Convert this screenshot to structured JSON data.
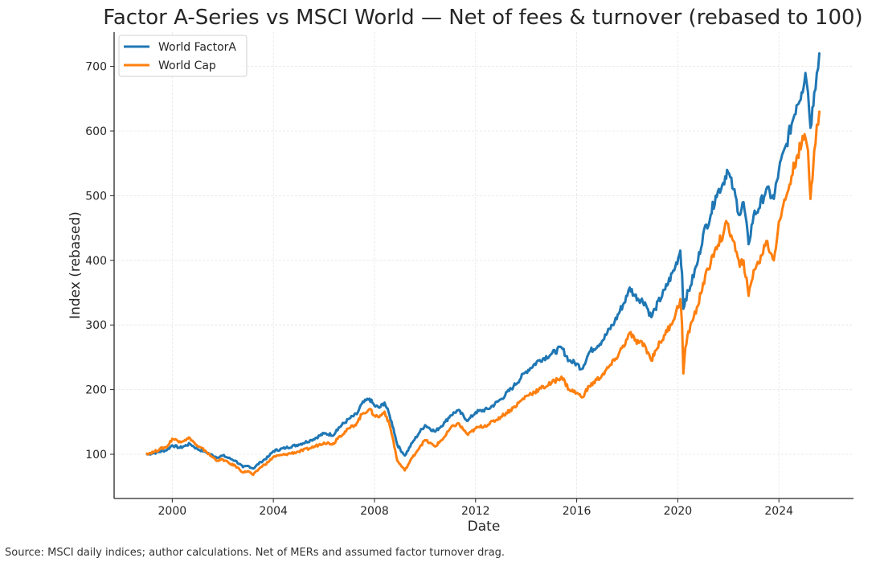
{
  "chart_data": {
    "type": "line",
    "title": "Factor A-Series vs MSCI World — Net of fees & turnover (rebased to 100)",
    "xlabel": "Date",
    "ylabel": "Index (rebased)",
    "xlim": [
      1997.7,
      2026.95
    ],
    "ylim": [
      31.6,
      753
    ],
    "xticks": [
      2000,
      2004,
      2008,
      2012,
      2016,
      2020,
      2024
    ],
    "xtick_labels": [
      "2000",
      "2004",
      "2008",
      "2012",
      "2016",
      "2020",
      "2024"
    ],
    "yticks": [
      100,
      200,
      300,
      400,
      500,
      600,
      700
    ],
    "ytick_labels": [
      "100",
      "200",
      "300",
      "400",
      "500",
      "600",
      "700"
    ],
    "grid": true,
    "legend_position": "top-left",
    "series": [
      {
        "name": "World FactorA",
        "color": "#1f77b4",
        "x": [
          1999.0,
          1999.3,
          1999.5,
          1999.8,
          2000.0,
          2000.3,
          2000.5,
          2000.7,
          2001.0,
          2001.3,
          2001.5,
          2001.8,
          2002.0,
          2002.3,
          2002.5,
          2002.8,
          2003.0,
          2003.2,
          2003.5,
          2003.8,
          2004.0,
          2004.5,
          2005.0,
          2005.5,
          2006.0,
          2006.4,
          2006.5,
          2007.0,
          2007.3,
          2007.5,
          2007.8,
          2008.0,
          2008.2,
          2008.4,
          2008.6,
          2008.75,
          2008.9,
          2009.1,
          2009.2,
          2009.5,
          2009.8,
          2010.0,
          2010.4,
          2010.8,
          2011.0,
          2011.3,
          2011.7,
          2012.0,
          2012.5,
          2013.0,
          2013.5,
          2014.0,
          2014.5,
          2015.0,
          2015.4,
          2015.7,
          2016.0,
          2016.2,
          2016.5,
          2017.0,
          2017.5,
          2018.0,
          2018.1,
          2018.3,
          2018.7,
          2018.95,
          2019.1,
          2019.5,
          2019.9,
          2020.1,
          2020.17,
          2020.22,
          2020.3,
          2020.5,
          2020.8,
          2021.0,
          2021.3,
          2021.5,
          2021.8,
          2021.95,
          2022.2,
          2022.45,
          2022.6,
          2022.8,
          2023.0,
          2023.2,
          2023.5,
          2023.8,
          2024.0,
          2024.3,
          2024.5,
          2024.7,
          2024.9,
          2025.05,
          2025.15,
          2025.25,
          2025.4,
          2025.5,
          2025.6
        ],
        "values": [
          100,
          102,
          104,
          107,
          114,
          110,
          113,
          116,
          108,
          104,
          100,
          95,
          98,
          93,
          90,
          80,
          82,
          78,
          88,
          96,
          105,
          110,
          115,
          122,
          132,
          130,
          138,
          155,
          162,
          178,
          186,
          175,
          172,
          180,
          160,
          140,
          115,
          103,
          98,
          118,
          135,
          145,
          135,
          150,
          160,
          168,
          152,
          165,
          170,
          185,
          205,
          228,
          245,
          255,
          265,
          245,
          240,
          232,
          258,
          275,
          305,
          345,
          358,
          345,
          335,
          312,
          325,
          355,
          390,
          415,
          380,
          325,
          340,
          360,
          400,
          440,
          470,
          500,
          520,
          540,
          510,
          470,
          490,
          425,
          470,
          480,
          510,
          495,
          540,
          580,
          610,
          640,
          660,
          690,
          660,
          605,
          660,
          690,
          720
        ]
      },
      {
        "name": "World Cap",
        "color": "#ff7f0e",
        "x": [
          1999.0,
          1999.3,
          1999.5,
          1999.8,
          2000.0,
          2000.3,
          2000.5,
          2000.7,
          2001.0,
          2001.3,
          2001.5,
          2001.8,
          2002.0,
          2002.3,
          2002.5,
          2002.8,
          2003.0,
          2003.2,
          2003.5,
          2003.8,
          2004.0,
          2004.5,
          2005.0,
          2005.5,
          2006.0,
          2006.4,
          2006.5,
          2007.0,
          2007.3,
          2007.5,
          2007.8,
          2008.0,
          2008.2,
          2008.4,
          2008.6,
          2008.75,
          2008.9,
          2009.1,
          2009.2,
          2009.5,
          2009.8,
          2010.0,
          2010.4,
          2010.8,
          2011.0,
          2011.3,
          2011.7,
          2012.0,
          2012.5,
          2013.0,
          2013.5,
          2014.0,
          2014.5,
          2015.0,
          2015.4,
          2015.7,
          2016.0,
          2016.2,
          2016.5,
          2017.0,
          2017.5,
          2018.0,
          2018.1,
          2018.3,
          2018.7,
          2018.95,
          2019.1,
          2019.5,
          2019.9,
          2020.1,
          2020.17,
          2020.22,
          2020.3,
          2020.5,
          2020.8,
          2021.0,
          2021.3,
          2021.5,
          2021.8,
          2021.95,
          2022.2,
          2022.45,
          2022.6,
          2022.8,
          2023.0,
          2023.2,
          2023.5,
          2023.8,
          2024.0,
          2024.3,
          2024.5,
          2024.7,
          2024.9,
          2025.05,
          2025.15,
          2025.25,
          2025.4,
          2025.5,
          2025.6
        ],
        "values": [
          101,
          104,
          108,
          112,
          124,
          120,
          122,
          125,
          112,
          106,
          98,
          90,
          92,
          85,
          82,
          72,
          74,
          68,
          80,
          88,
          96,
          100,
          104,
          110,
          118,
          116,
          124,
          140,
          148,
          162,
          170,
          160,
          158,
          166,
          145,
          120,
          90,
          80,
          75,
          95,
          112,
          122,
          112,
          128,
          140,
          148,
          130,
          140,
          146,
          158,
          172,
          190,
          200,
          210,
          220,
          200,
          195,
          188,
          205,
          222,
          245,
          278,
          288,
          276,
          268,
          245,
          260,
          285,
          315,
          340,
          300,
          225,
          265,
          300,
          330,
          365,
          395,
          420,
          440,
          458,
          430,
          390,
          400,
          345,
          385,
          395,
          430,
          400,
          460,
          500,
          530,
          560,
          580,
          590,
          570,
          495,
          570,
          610,
          630
        ]
      }
    ]
  },
  "source_note": "Source: MSCI daily indices; author calculations. Net of MERs and assumed factor turnover drag."
}
